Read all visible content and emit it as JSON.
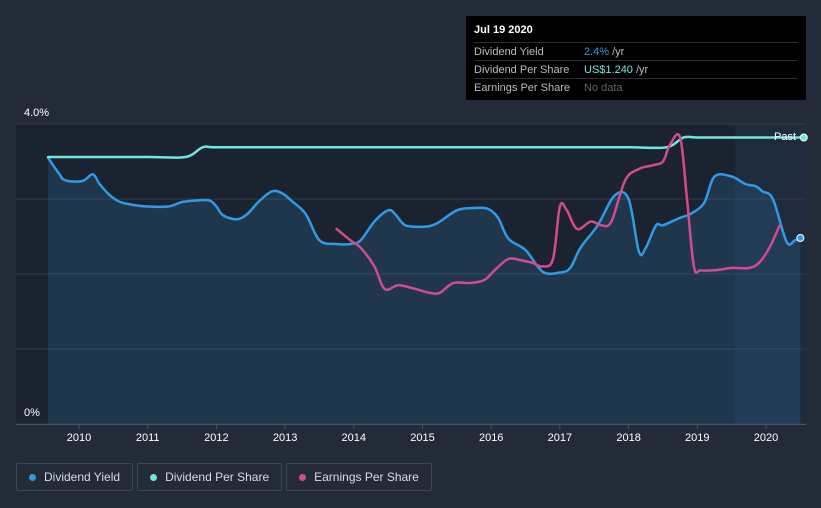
{
  "tooltip": {
    "date": "Jul 19 2020",
    "rows": [
      {
        "label": "Dividend Yield",
        "value": "2.4%",
        "unit": "/yr"
      },
      {
        "label": "Dividend Per Share",
        "value": "US$1.240",
        "unit": "/yr"
      },
      {
        "label": "Earnings Per Share",
        "value": "No data",
        "unit": ""
      }
    ]
  },
  "past_label": "Past",
  "colors": {
    "background": "#232b39",
    "plot_area": "#1c2330",
    "dividend_yield": "#2f9ae6",
    "dividend_per_share": "#6ee8dc",
    "earnings_per_share": "#d24a8f"
  },
  "legend": [
    {
      "label": "Dividend Yield"
    },
    {
      "label": "Dividend Per Share"
    },
    {
      "label": "Earnings Per Share"
    }
  ],
  "chart_data": {
    "type": "line",
    "x_ticks": [
      "2010",
      "2011",
      "2012",
      "2013",
      "2014",
      "2015",
      "2016",
      "2017",
      "2018",
      "2019",
      "2020"
    ],
    "y_ticks": [
      "4.0%",
      "0%"
    ],
    "ylim": [
      0,
      4.0
    ],
    "xlim": [
      2009.5,
      2020.55
    ],
    "grid": true,
    "legend_position": "bottom-left",
    "series": [
      {
        "name": "Dividend Yield",
        "key": "dividend_yield",
        "x": [
          2009.55,
          2009.7,
          2009.8,
          2010.05,
          2010.2,
          2010.3,
          2010.45,
          2010.6,
          2010.8,
          2011.0,
          2011.3,
          2011.5,
          2011.7,
          2011.9,
          2012.0,
          2012.1,
          2012.3,
          2012.45,
          2012.6,
          2012.8,
          2012.95,
          2013.1,
          2013.3,
          2013.5,
          2013.75,
          2013.95,
          2014.1,
          2014.3,
          2014.5,
          2014.6,
          2014.75,
          2015.0,
          2015.2,
          2015.5,
          2015.75,
          2015.95,
          2016.1,
          2016.25,
          2016.5,
          2016.75,
          2017.0,
          2017.15,
          2017.3,
          2017.55,
          2017.8,
          2018.0,
          2018.15,
          2018.25,
          2018.4,
          2018.5,
          2018.75,
          2018.9,
          2019.1,
          2019.25,
          2019.5,
          2019.7,
          2019.85,
          2019.95,
          2020.1,
          2020.3,
          2020.42,
          2020.5
        ],
        "y": [
          3.55,
          3.35,
          3.25,
          3.24,
          3.33,
          3.2,
          3.05,
          2.96,
          2.92,
          2.9,
          2.9,
          2.96,
          2.98,
          2.98,
          2.9,
          2.78,
          2.73,
          2.8,
          2.95,
          3.1,
          3.08,
          2.97,
          2.8,
          2.45,
          2.4,
          2.4,
          2.45,
          2.7,
          2.85,
          2.8,
          2.65,
          2.63,
          2.67,
          2.85,
          2.88,
          2.87,
          2.75,
          2.47,
          2.32,
          2.03,
          2.02,
          2.08,
          2.35,
          2.65,
          3.05,
          3.0,
          2.3,
          2.35,
          2.65,
          2.65,
          2.75,
          2.8,
          2.95,
          3.3,
          3.3,
          3.2,
          3.17,
          3.1,
          3.0,
          2.43,
          2.45,
          2.48
        ]
      },
      {
        "name": "Dividend Per Share",
        "key": "dividend_per_share",
        "x": [
          2009.55,
          2010.0,
          2011.0,
          2011.55,
          2011.8,
          2012.0,
          2013.0,
          2014.0,
          2015.0,
          2016.0,
          2017.0,
          2018.0,
          2018.55,
          2018.8,
          2019.0,
          2019.5,
          2020.0,
          2020.55
        ],
        "y": [
          3.56,
          3.56,
          3.56,
          3.56,
          3.69,
          3.69,
          3.69,
          3.69,
          3.69,
          3.69,
          3.69,
          3.69,
          3.69,
          3.82,
          3.82,
          3.82,
          3.82,
          3.82
        ]
      },
      {
        "name": "Earnings Per Share",
        "key": "earnings_per_share",
        "x": [
          2013.75,
          2013.95,
          2014.1,
          2014.3,
          2014.45,
          2014.65,
          2014.9,
          2015.1,
          2015.25,
          2015.45,
          2015.7,
          2015.9,
          2016.05,
          2016.25,
          2016.45,
          2016.6,
          2016.75,
          2016.9,
          2017.0,
          2017.1,
          2017.25,
          2017.45,
          2017.6,
          2017.75,
          2017.95,
          2018.15,
          2018.35,
          2018.5,
          2018.6,
          2018.75,
          2018.85,
          2018.95,
          2019.05,
          2019.25,
          2019.5,
          2019.75,
          2019.9,
          2020.05,
          2020.2
        ],
        "y": [
          2.6,
          2.45,
          2.35,
          2.1,
          1.8,
          1.85,
          1.8,
          1.75,
          1.75,
          1.88,
          1.88,
          1.92,
          2.05,
          2.2,
          2.18,
          2.15,
          2.1,
          2.2,
          2.9,
          2.85,
          2.6,
          2.7,
          2.65,
          2.7,
          3.25,
          3.4,
          3.45,
          3.5,
          3.72,
          3.82,
          3.0,
          2.1,
          2.05,
          2.05,
          2.08,
          2.08,
          2.15,
          2.35,
          2.65
        ]
      }
    ]
  }
}
